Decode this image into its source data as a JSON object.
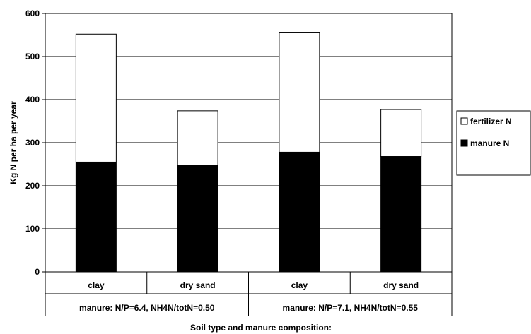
{
  "chart_data": {
    "type": "bar",
    "stacked": true,
    "categories": [
      "clay",
      "dry sand",
      "clay",
      "dry sand"
    ],
    "groups": [
      {
        "label": "manure: N/P=6.4, NH4N/totN=0.50",
        "categories": [
          "clay",
          "dry sand"
        ]
      },
      {
        "label": "manure: N/P=7.1, NH4N/totN=0.55",
        "categories": [
          "clay",
          "dry sand"
        ]
      }
    ],
    "series": [
      {
        "name": "manure N",
        "color": "#000000",
        "values": [
          255,
          247,
          278,
          268
        ]
      },
      {
        "name": "fertilizer N",
        "color": "#ffffff",
        "values": [
          297,
          127,
          277,
          109
        ]
      }
    ],
    "title": "",
    "xlabel": "Soil type and manure composition:",
    "ylabel": "Kg N per ha per year",
    "ylim": [
      0,
      600
    ],
    "yticks": [
      0,
      100,
      200,
      300,
      400,
      500,
      600
    ],
    "grid": true,
    "legend": {
      "placement": "right",
      "entries": [
        {
          "label": "fertilizer N",
          "color": "#ffffff"
        },
        {
          "label": "manure N",
          "color": "#000000"
        }
      ]
    }
  }
}
